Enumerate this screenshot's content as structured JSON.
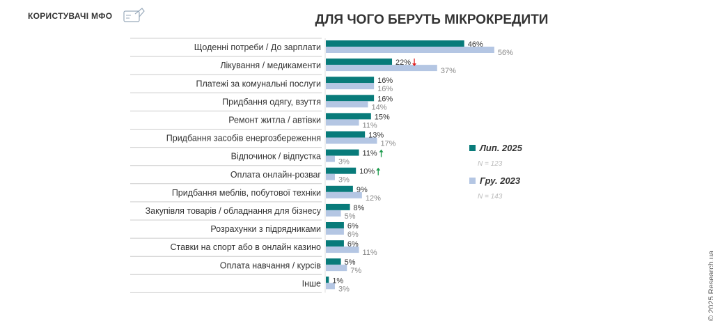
{
  "header": {
    "brand": "КОРИСТУВАЧІ МФО",
    "title": "ДЛЯ ЧОГО БЕРУТЬ МІКРОКРЕДИТИ"
  },
  "copyright": "© 2025 Research.ua",
  "colors": {
    "series1": "#087b7a",
    "series2": "#b4c6e3",
    "up": "#1a9a4a",
    "down": "#e02020"
  },
  "chart_data": {
    "type": "bar",
    "orientation": "horizontal",
    "title": "ДЛЯ ЧОГО БЕРУТЬ МІКРОКРЕДИТИ",
    "categories": [
      "Щоденні потреби / До зарплати",
      "Лікування / медикаменти",
      "Платежі за комунальні послуги",
      "Придбання одягу, взуття",
      "Ремонт житла / автівки",
      "Придбання засобів енергозбереження",
      "Відпочинок / відпустка",
      "Оплата онлайн-розваг",
      "Придбання меблів, побутової техніки",
      "Закупівля товарів / обладнання для бізнесу",
      "Розрахунки з підрядниками",
      "Ставки на спорт або в онлайн казино",
      "Оплата навчання / курсів",
      "Інше"
    ],
    "series": [
      {
        "name": "Лип. 2025",
        "n": "N = 123",
        "values": [
          46,
          22,
          16,
          16,
          15,
          13,
          11,
          10,
          9,
          8,
          6,
          6,
          5,
          1
        ]
      },
      {
        "name": "Гру. 2023",
        "n": "N = 143",
        "values": [
          56,
          37,
          16,
          14,
          11,
          17,
          3,
          3,
          12,
          5,
          6,
          11,
          7,
          3
        ]
      }
    ],
    "change_markers": {
      "1": "down",
      "6": "up",
      "7": "up"
    },
    "unit": "%",
    "legend": "right"
  }
}
